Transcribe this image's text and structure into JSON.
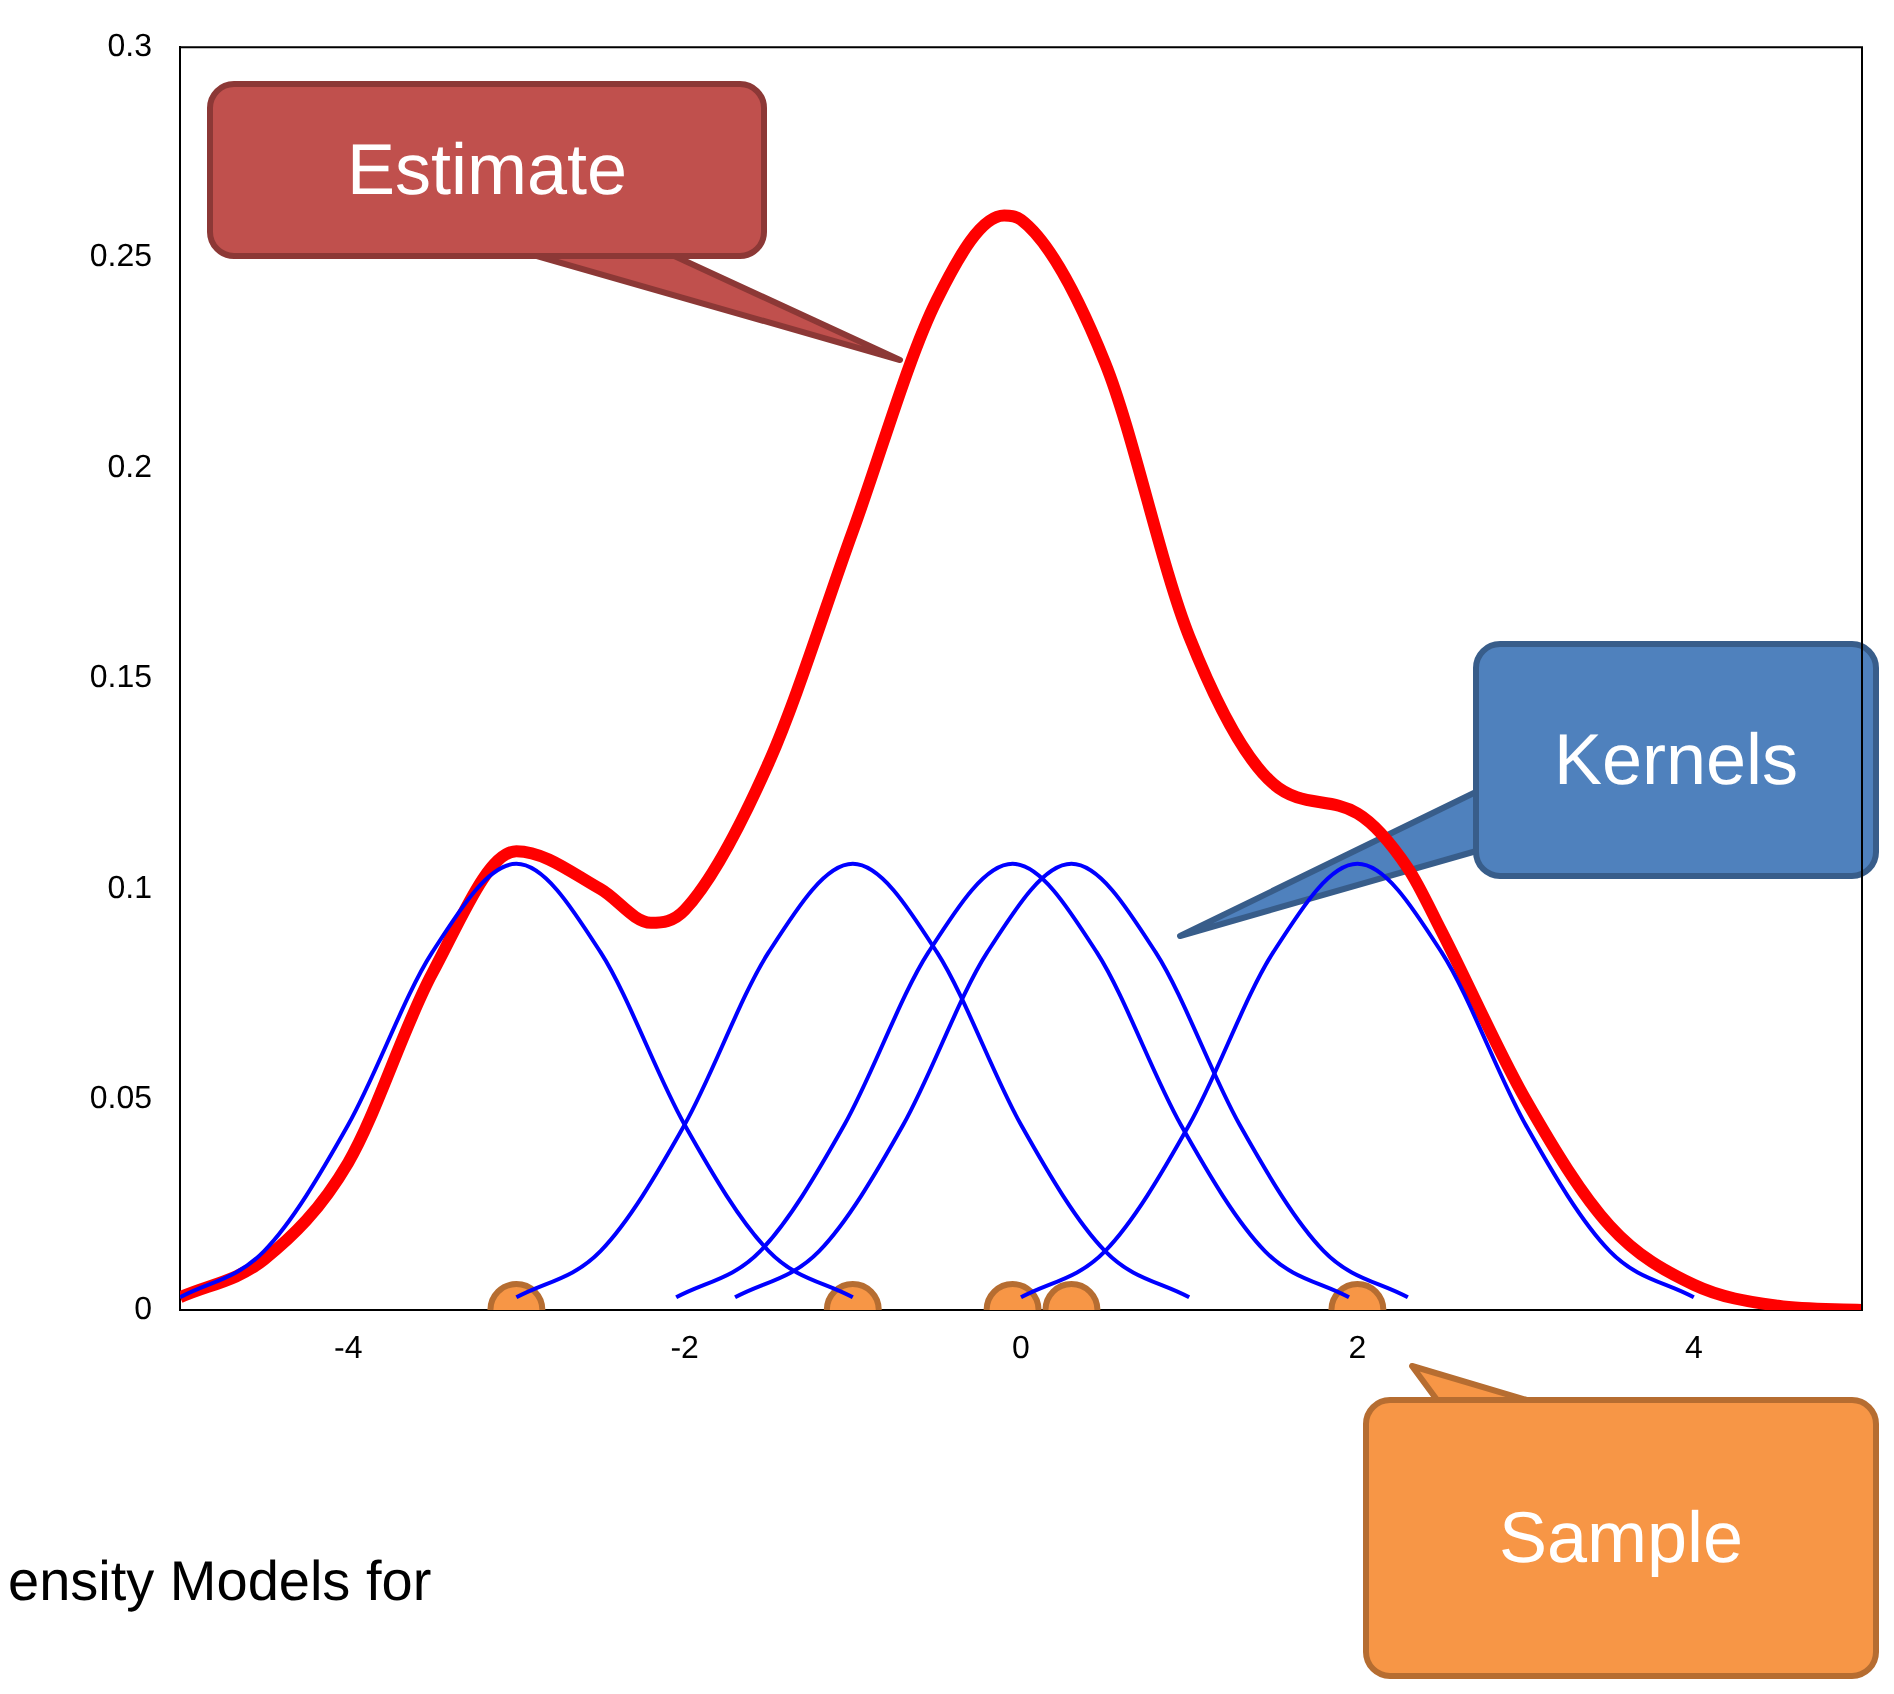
{
  "chart_data": {
    "type": "line",
    "xlim": [
      -5,
      5
    ],
    "xticks": [
      -4,
      -2,
      0,
      2,
      4
    ],
    "ylim": [
      0,
      0.3
    ],
    "yticks": [
      0,
      0.05,
      0.1,
      0.15,
      0.2,
      0.25,
      0.3
    ],
    "grid": false,
    "legend": false,
    "series": [
      {
        "color": "#0000ff",
        "x": [
          -5,
          -4.5,
          -4,
          -3.5,
          -3,
          -2.5,
          -2,
          -1.5,
          -1
        ],
        "values": [
          0.003,
          0.014,
          0.044,
          0.085,
          0.106,
          0.085,
          0.044,
          0.014,
          0.003
        ]
      },
      {
        "color": "#0000ff",
        "x": [
          -3,
          -2.5,
          -2,
          -1.5,
          -1,
          -0.5,
          0,
          0.5,
          1
        ],
        "values": [
          0.003,
          0.014,
          0.044,
          0.085,
          0.106,
          0.085,
          0.044,
          0.014,
          0.003
        ]
      },
      {
        "color": "#0000ff",
        "x": [
          -2.05,
          -1.55,
          -1.05,
          -0.55,
          -0.05,
          0.45,
          0.95,
          1.45,
          1.95
        ],
        "values": [
          0.003,
          0.014,
          0.044,
          0.085,
          0.106,
          0.085,
          0.044,
          0.014,
          0.003
        ]
      },
      {
        "color": "#0000ff",
        "x": [
          -1.7,
          -1.2,
          -0.7,
          -0.2,
          0.3,
          0.8,
          1.3,
          1.8,
          2.3
        ],
        "values": [
          0.003,
          0.014,
          0.044,
          0.085,
          0.106,
          0.085,
          0.044,
          0.014,
          0.003
        ]
      },
      {
        "color": "#0000ff",
        "x": [
          0,
          0.5,
          1,
          1.5,
          2,
          2.5,
          3,
          3.5,
          4
        ],
        "values": [
          0.003,
          0.014,
          0.044,
          0.085,
          0.106,
          0.085,
          0.044,
          0.014,
          0.003
        ]
      },
      {
        "color": "#ff0000",
        "x": [
          -5,
          -4.5,
          -4,
          -3.5,
          -3,
          -2.5,
          -2.2,
          -2,
          -1.5,
          -1,
          -0.5,
          -0.1,
          0,
          0.5,
          1,
          1.5,
          2,
          2.3,
          2.5,
          3,
          3.5,
          4,
          4.5,
          5
        ],
        "values": [
          0.003,
          0.012,
          0.035,
          0.08,
          0.109,
          0.1,
          0.092,
          0.095,
          0.13,
          0.185,
          0.24,
          0.26,
          0.259,
          0.225,
          0.16,
          0.125,
          0.118,
          0.105,
          0.09,
          0.05,
          0.02,
          0.006,
          0.001,
          0
        ]
      },
      {
        "type": "scatter",
        "marker": "circle",
        "color": "#f79646",
        "x": [
          -3,
          -1,
          -0.05,
          0.3,
          2
        ],
        "values": [
          0,
          0,
          0,
          0,
          0
        ]
      }
    ],
    "annotations": [
      "Estimate",
      "Kernels",
      "Sample",
      "ensity Models for"
    ]
  }
}
